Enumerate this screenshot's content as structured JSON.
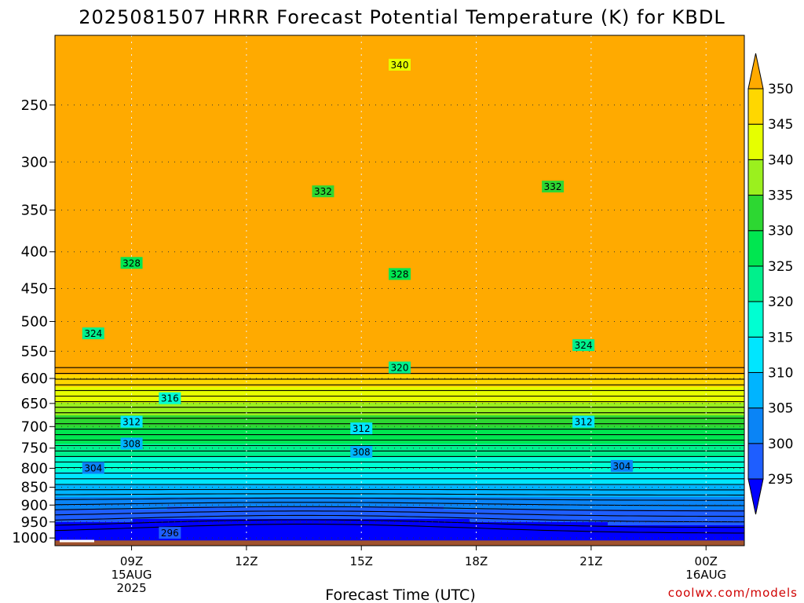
{
  "chart_data": {
    "type": "heatmap",
    "title": "2025081507 HRRR Forecast Potential Temperature (K) for KBDL",
    "xlabel": "Forecast Time (UTC)",
    "ylabel": "",
    "credit": "coolwx.com/models",
    "y_scale": "log",
    "ylim": [
      1025,
      200
    ],
    "xlim": [
      "2025-08-15 07Z",
      "2025-08-16 01Z"
    ],
    "y_ticks": [
      250,
      300,
      350,
      400,
      450,
      500,
      550,
      600,
      650,
      700,
      750,
      800,
      850,
      900,
      950,
      1000
    ],
    "x_ticks": [
      {
        "label": "09Z",
        "date": "15AUG",
        "year": "2025"
      },
      {
        "label": "12Z",
        "date": "",
        "year": ""
      },
      {
        "label": "15Z",
        "date": "",
        "year": ""
      },
      {
        "label": "18Z",
        "date": "",
        "year": ""
      },
      {
        "label": "21Z",
        "date": "",
        "year": ""
      },
      {
        "label": "00Z",
        "date": "16AUG",
        "year": ""
      }
    ],
    "colorbar": {
      "levels": [
        295,
        300,
        305,
        310,
        315,
        320,
        325,
        330,
        335,
        340,
        345,
        350
      ],
      "colors": [
        "#0000ff",
        "#1e5eff",
        "#0a84f6",
        "#00b4ff",
        "#00e6ff",
        "#00ffd2",
        "#00f08c",
        "#00e650",
        "#2dd732",
        "#9bf01e",
        "#e6ff00",
        "#ffd700",
        "#ffaa00"
      ],
      "extend": "both"
    },
    "grid": true,
    "ground": "surface at ~1010 hPa",
    "contour_labels": [
      {
        "value": "340",
        "hour": 16,
        "pressure": 220
      },
      {
        "value": "332",
        "hour": 14,
        "pressure": 330
      },
      {
        "value": "332",
        "hour": 20,
        "pressure": 325
      },
      {
        "value": "328",
        "hour": 9,
        "pressure": 415
      },
      {
        "value": "328",
        "hour": 16,
        "pressure": 430
      },
      {
        "value": "324",
        "hour": 8,
        "pressure": 520
      },
      {
        "value": "324",
        "hour": 20.8,
        "pressure": 540
      },
      {
        "value": "320",
        "hour": 16,
        "pressure": 580
      },
      {
        "value": "316",
        "hour": 10,
        "pressure": 640
      },
      {
        "value": "312",
        "hour": 9,
        "pressure": 690
      },
      {
        "value": "312",
        "hour": 15,
        "pressure": 705
      },
      {
        "value": "312",
        "hour": 20.8,
        "pressure": 690
      },
      {
        "value": "308",
        "hour": 9,
        "pressure": 740
      },
      {
        "value": "308",
        "hour": 15,
        "pressure": 760
      },
      {
        "value": "304",
        "hour": 8,
        "pressure": 800
      },
      {
        "value": "304",
        "hour": 21.8,
        "pressure": 795
      },
      {
        "value": "296",
        "hour": 10,
        "pressure": 985
      }
    ]
  }
}
